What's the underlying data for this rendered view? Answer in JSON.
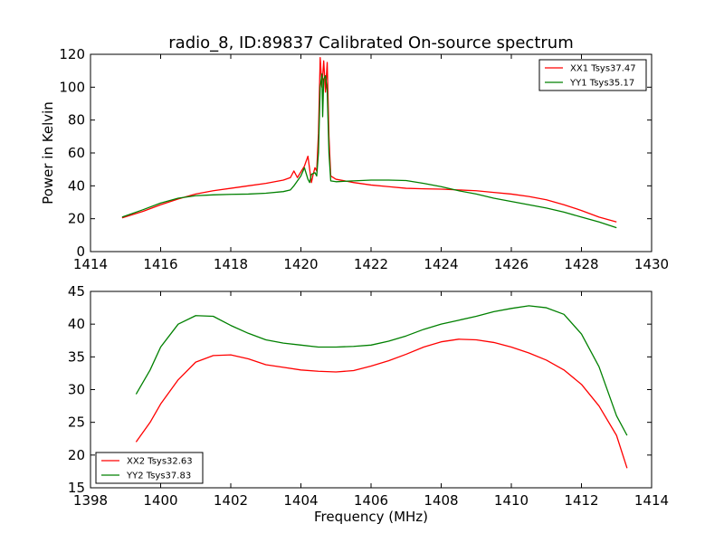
{
  "chart_data": [
    {
      "type": "line",
      "title": "radio_8, ID:89837 Calibrated On-source spectrum",
      "xlabel": "",
      "ylabel": "Power in Kelvin",
      "xlim": [
        1414,
        1430
      ],
      "ylim": [
        0,
        120
      ],
      "xticks": [
        "1414",
        "1416",
        "1418",
        "1420",
        "1422",
        "1424",
        "1426",
        "1428",
        "1430"
      ],
      "yticks": [
        "0",
        "20",
        "40",
        "60",
        "80",
        "100",
        "120"
      ],
      "legend_placement": "top-right",
      "grid": false,
      "series": [
        {
          "name": "XX1 Tsys37.47",
          "color": "#ff0000",
          "points": [
            [
              1414.9,
              20.5
            ],
            [
              1415.5,
              24.5
            ],
            [
              1416.0,
              28.5
            ],
            [
              1416.5,
              32
            ],
            [
              1417.0,
              35
            ],
            [
              1417.5,
              37
            ],
            [
              1418.0,
              38.5
            ],
            [
              1418.5,
              40
            ],
            [
              1419.0,
              41.5
            ],
            [
              1419.5,
              43.5
            ],
            [
              1419.7,
              45
            ],
            [
              1419.8,
              49
            ],
            [
              1419.9,
              45
            ],
            [
              1420.1,
              52
            ],
            [
              1420.2,
              58
            ],
            [
              1420.25,
              50
            ],
            [
              1420.3,
              42
            ],
            [
              1420.35,
              47
            ],
            [
              1420.4,
              51
            ],
            [
              1420.45,
              49
            ],
            [
              1420.5,
              72
            ],
            [
              1420.55,
              118
            ],
            [
              1420.6,
              100
            ],
            [
              1420.65,
              116
            ],
            [
              1420.7,
              97
            ],
            [
              1420.75,
              115
            ],
            [
              1420.8,
              70
            ],
            [
              1420.85,
              46
            ],
            [
              1421.0,
              44
            ],
            [
              1421.5,
              42
            ],
            [
              1422.0,
              40.5
            ],
            [
              1422.5,
              39.5
            ],
            [
              1423.0,
              38.5
            ],
            [
              1423.5,
              38.2
            ],
            [
              1424.0,
              38
            ],
            [
              1424.5,
              37.5
            ],
            [
              1425.0,
              37
            ],
            [
              1425.5,
              36
            ],
            [
              1426.0,
              35
            ],
            [
              1426.5,
              33.5
            ],
            [
              1427.0,
              31.5
            ],
            [
              1427.5,
              28.5
            ],
            [
              1428.0,
              25
            ],
            [
              1428.5,
              21
            ],
            [
              1429.0,
              18
            ]
          ]
        },
        {
          "name": "YY1 Tsys35.17",
          "color": "#008000",
          "points": [
            [
              1414.9,
              21
            ],
            [
              1415.5,
              25.5
            ],
            [
              1416.0,
              29.5
            ],
            [
              1416.5,
              32.5
            ],
            [
              1417.0,
              34
            ],
            [
              1417.5,
              34.5
            ],
            [
              1418.0,
              34.8
            ],
            [
              1418.5,
              35
            ],
            [
              1419.0,
              35.5
            ],
            [
              1419.5,
              36.5
            ],
            [
              1419.7,
              37.5
            ],
            [
              1419.8,
              40
            ],
            [
              1420.0,
              46
            ],
            [
              1420.1,
              51
            ],
            [
              1420.2,
              44
            ],
            [
              1420.25,
              42
            ],
            [
              1420.3,
              47
            ],
            [
              1420.4,
              48
            ],
            [
              1420.45,
              46
            ],
            [
              1420.5,
              60
            ],
            [
              1420.55,
              100
            ],
            [
              1420.6,
              108
            ],
            [
              1420.62,
              82
            ],
            [
              1420.65,
              105
            ],
            [
              1420.7,
              107
            ],
            [
              1420.75,
              98
            ],
            [
              1420.8,
              60
            ],
            [
              1420.85,
              43
            ],
            [
              1421.0,
              42.5
            ],
            [
              1421.5,
              43
            ],
            [
              1422.0,
              43.5
            ],
            [
              1422.5,
              43.5
            ],
            [
              1423.0,
              43.2
            ],
            [
              1423.5,
              41.5
            ],
            [
              1424.0,
              39.5
            ],
            [
              1424.5,
              37
            ],
            [
              1425.0,
              35
            ],
            [
              1425.5,
              32.5
            ],
            [
              1426.0,
              30.5
            ],
            [
              1426.5,
              28.5
            ],
            [
              1427.0,
              26.5
            ],
            [
              1427.5,
              24
            ],
            [
              1428.0,
              21
            ],
            [
              1428.5,
              18
            ],
            [
              1429.0,
              14.5
            ]
          ]
        }
      ]
    },
    {
      "type": "line",
      "title": "",
      "xlabel": "Frequency (MHz)",
      "ylabel": "",
      "xlim": [
        1398,
        1414
      ],
      "ylim": [
        15,
        45
      ],
      "xticks": [
        "1398",
        "1400",
        "1402",
        "1404",
        "1406",
        "1408",
        "1410",
        "1412",
        "1414"
      ],
      "yticks": [
        "15",
        "20",
        "25",
        "30",
        "35",
        "40",
        "45"
      ],
      "legend_placement": "bottom-left",
      "grid": false,
      "series": [
        {
          "name": "XX2 Tsys32.63",
          "color": "#ff0000",
          "points": [
            [
              1399.3,
              22
            ],
            [
              1399.7,
              25
            ],
            [
              1400.0,
              27.8
            ],
            [
              1400.5,
              31.5
            ],
            [
              1401.0,
              34.2
            ],
            [
              1401.5,
              35.2
            ],
            [
              1402.0,
              35.3
            ],
            [
              1402.5,
              34.7
            ],
            [
              1403.0,
              33.8
            ],
            [
              1403.5,
              33.4
            ],
            [
              1404.0,
              33
            ],
            [
              1404.5,
              32.8
            ],
            [
              1405.0,
              32.7
            ],
            [
              1405.5,
              32.9
            ],
            [
              1406.0,
              33.6
            ],
            [
              1406.5,
              34.4
            ],
            [
              1407.0,
              35.4
            ],
            [
              1407.5,
              36.5
            ],
            [
              1408.0,
              37.3
            ],
            [
              1408.5,
              37.7
            ],
            [
              1409.0,
              37.6
            ],
            [
              1409.5,
              37.2
            ],
            [
              1410.0,
              36.5
            ],
            [
              1410.5,
              35.6
            ],
            [
              1411.0,
              34.5
            ],
            [
              1411.5,
              33
            ],
            [
              1412.0,
              30.8
            ],
            [
              1412.5,
              27.5
            ],
            [
              1413.0,
              23
            ],
            [
              1413.3,
              18
            ]
          ]
        },
        {
          "name": "YY2 Tsys37.83",
          "color": "#008000",
          "points": [
            [
              1399.3,
              29.3
            ],
            [
              1399.7,
              33
            ],
            [
              1400.0,
              36.5
            ],
            [
              1400.5,
              40
            ],
            [
              1401.0,
              41.3
            ],
            [
              1401.5,
              41.2
            ],
            [
              1402.0,
              39.8
            ],
            [
              1402.5,
              38.6
            ],
            [
              1403.0,
              37.6
            ],
            [
              1403.5,
              37.1
            ],
            [
              1404.0,
              36.8
            ],
            [
              1404.5,
              36.5
            ],
            [
              1405.0,
              36.5
            ],
            [
              1405.5,
              36.6
            ],
            [
              1406.0,
              36.8
            ],
            [
              1406.5,
              37.4
            ],
            [
              1407.0,
              38.2
            ],
            [
              1407.5,
              39.2
            ],
            [
              1408.0,
              40
            ],
            [
              1408.5,
              40.6
            ],
            [
              1409.0,
              41.2
            ],
            [
              1409.5,
              41.9
            ],
            [
              1410.0,
              42.4
            ],
            [
              1410.5,
              42.8
            ],
            [
              1411.0,
              42.5
            ],
            [
              1411.5,
              41.5
            ],
            [
              1412.0,
              38.5
            ],
            [
              1412.5,
              33.5
            ],
            [
              1413.0,
              26
            ],
            [
              1413.3,
              23
            ]
          ]
        }
      ]
    }
  ]
}
